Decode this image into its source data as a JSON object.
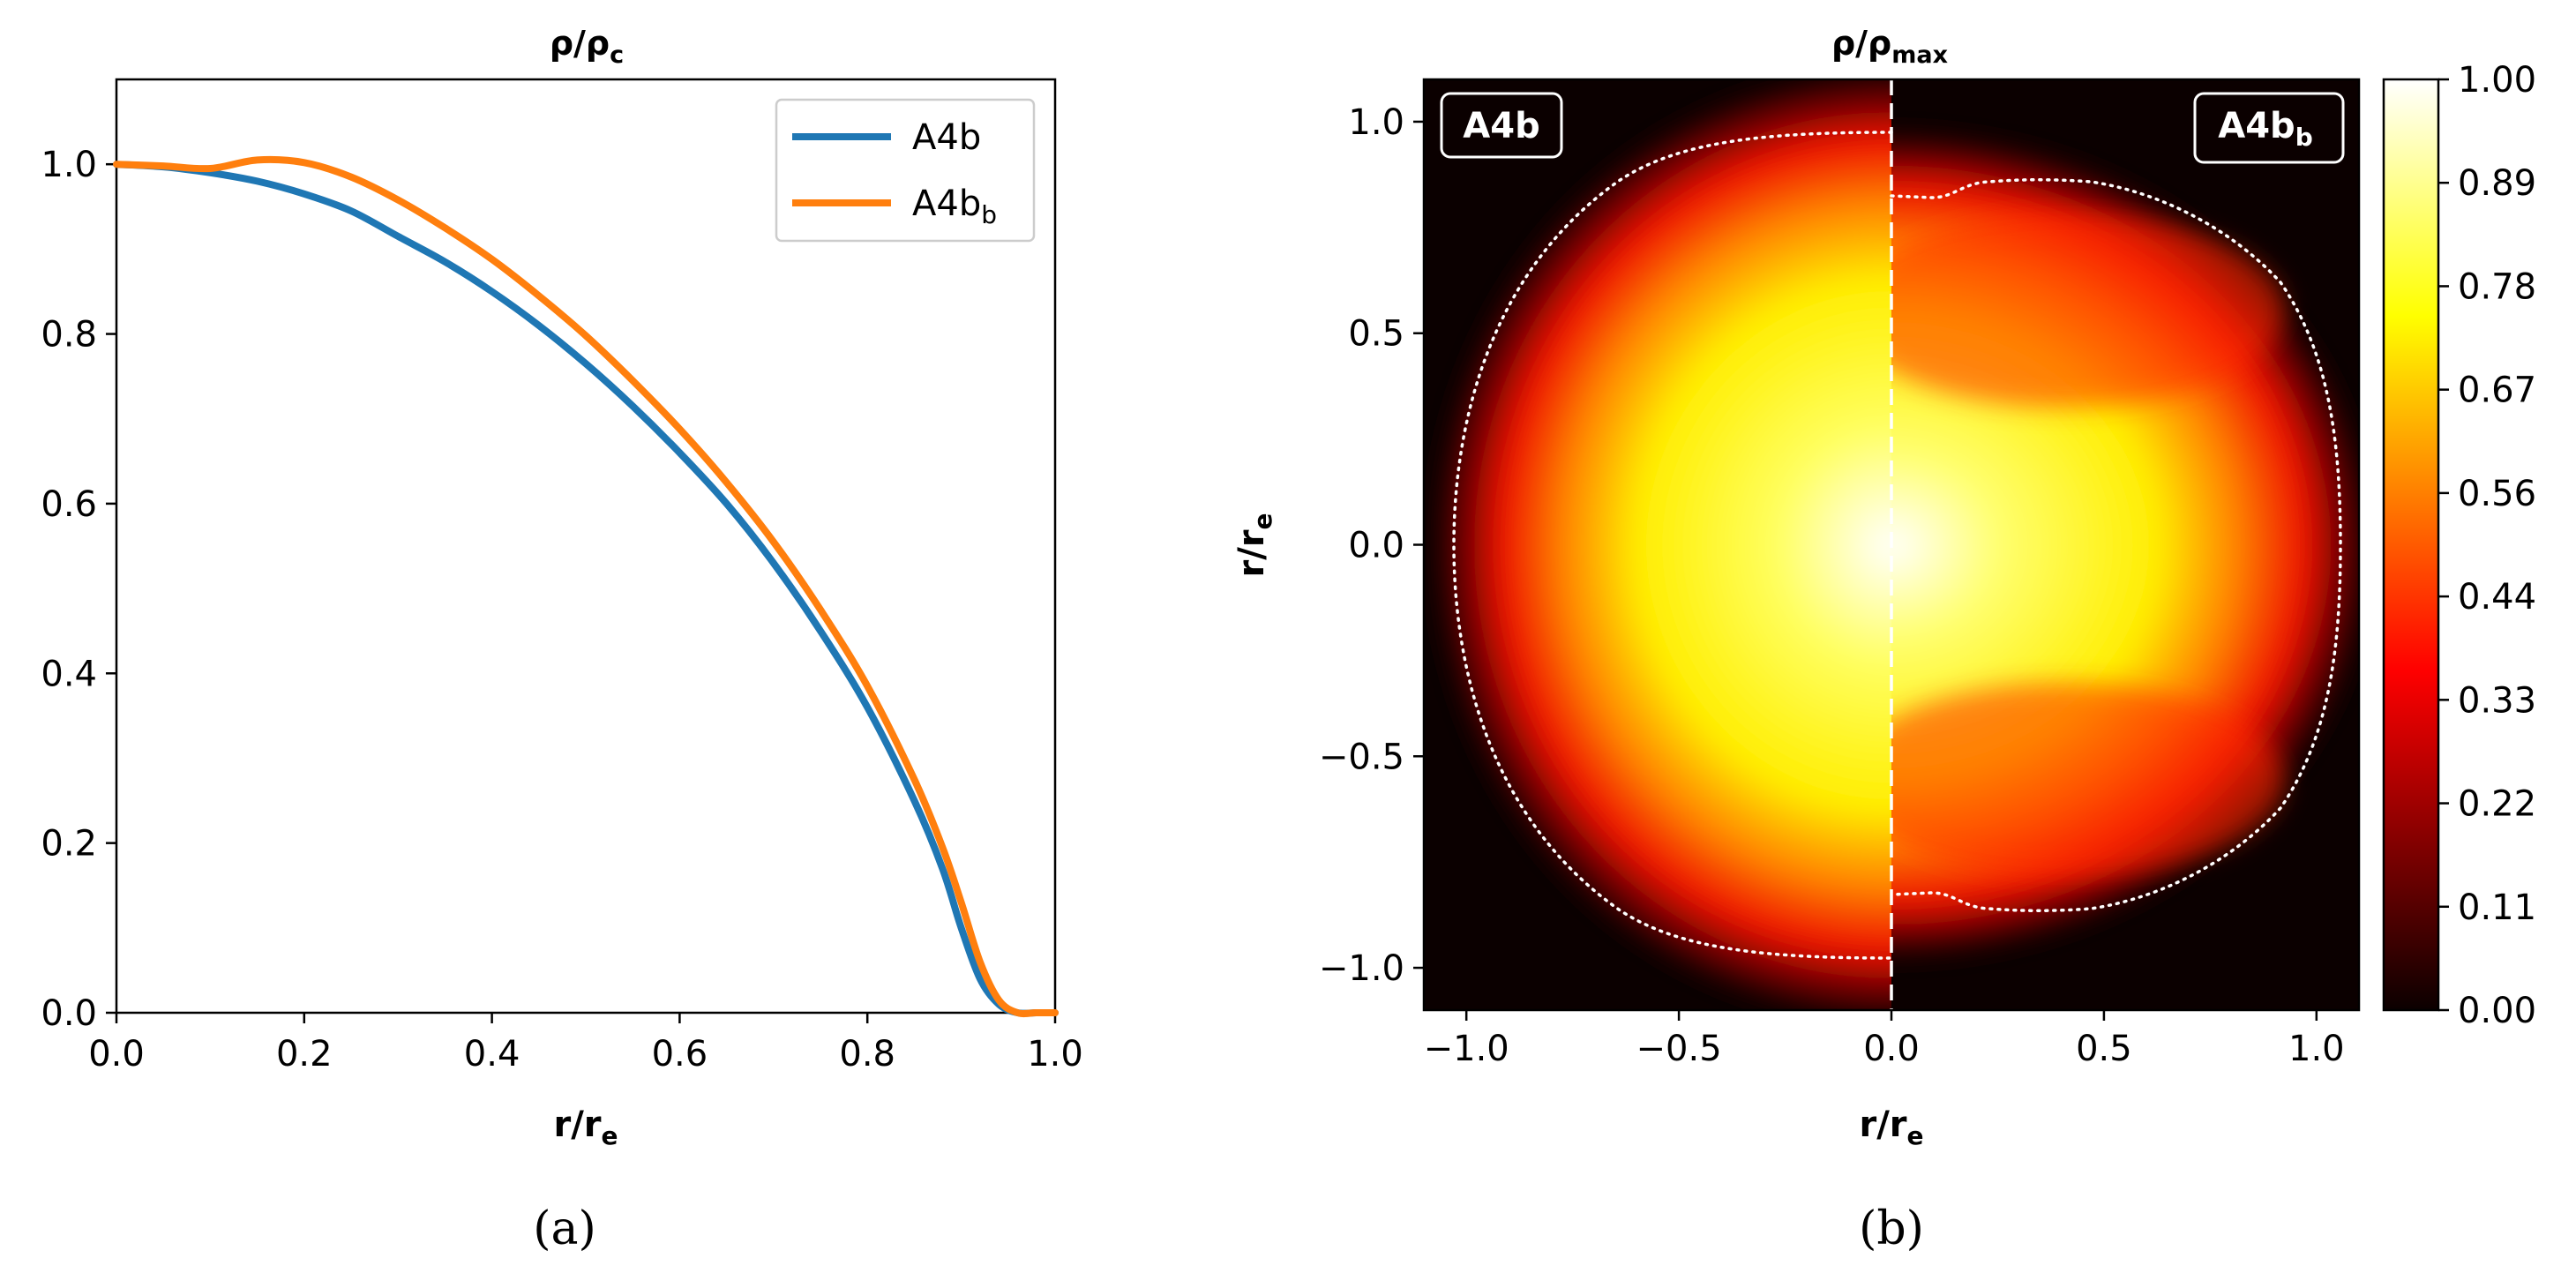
{
  "chart_data": [
    {
      "type": "line",
      "title": "ρ/ρ",
      "title_sub": "c",
      "xlabel": "r/r",
      "xlabel_sub": "e",
      "ylabel": "",
      "xlim": [
        0,
        1.0
      ],
      "ylim": [
        0,
        1.1
      ],
      "xticks": [
        "0.0",
        "0.2",
        "0.4",
        "0.6",
        "0.8",
        "1.0"
      ],
      "yticks": [
        "0.0",
        "0.2",
        "0.4",
        "0.6",
        "0.8",
        "1.0"
      ],
      "legend_position": "top-right",
      "series": [
        {
          "name": "A4b",
          "name_sub": "",
          "color": "#1f77b4",
          "x": [
            0,
            0.05,
            0.1,
            0.15,
            0.2,
            0.25,
            0.3,
            0.35,
            0.4,
            0.45,
            0.5,
            0.55,
            0.6,
            0.65,
            0.7,
            0.75,
            0.8,
            0.85,
            0.88,
            0.9,
            0.92,
            0.94,
            0.96,
            0.98,
            1.0
          ],
          "values": [
            1.0,
            0.997,
            0.99,
            0.98,
            0.965,
            0.945,
            0.915,
            0.885,
            0.85,
            0.81,
            0.765,
            0.715,
            0.66,
            0.6,
            0.53,
            0.45,
            0.36,
            0.25,
            0.17,
            0.1,
            0.04,
            0.01,
            0.0,
            0.0,
            0.0
          ]
        },
        {
          "name": "A4b",
          "name_sub": "b",
          "color": "#ff7f0e",
          "x": [
            0,
            0.05,
            0.1,
            0.15,
            0.2,
            0.25,
            0.3,
            0.35,
            0.4,
            0.45,
            0.5,
            0.55,
            0.6,
            0.65,
            0.7,
            0.75,
            0.8,
            0.85,
            0.88,
            0.9,
            0.92,
            0.94,
            0.96,
            0.98,
            1.0
          ],
          "values": [
            1.0,
            0.998,
            0.995,
            1.005,
            1.002,
            0.985,
            0.958,
            0.925,
            0.888,
            0.845,
            0.798,
            0.745,
            0.688,
            0.625,
            0.555,
            0.475,
            0.385,
            0.275,
            0.195,
            0.13,
            0.06,
            0.015,
            0.0,
            0.0,
            0.0
          ]
        }
      ]
    },
    {
      "type": "heatmap",
      "title": "ρ/ρ",
      "title_sub": "max",
      "xlabel": "r/r",
      "xlabel_sub": "e",
      "ylabel": "r/r",
      "ylabel_sub": "e",
      "xlim": [
        -1.1,
        1.1
      ],
      "ylim": [
        -1.1,
        1.1
      ],
      "xticks": [
        -1.0,
        -0.5,
        0.0,
        0.5,
        1.0
      ],
      "xtick_labels": [
        "−1.0",
        "−0.5",
        "0.0",
        "0.5",
        "1.0"
      ],
      "yticks": [
        -1.0,
        -0.5,
        0.0,
        0.5,
        1.0
      ],
      "ytick_labels": [
        "−1.0",
        "−0.5",
        "0.0",
        "0.5",
        "1.0"
      ],
      "colormap": "hot",
      "colorbar_ticks": [
        "0.00",
        "0.11",
        "0.22",
        "0.33",
        "0.44",
        "0.56",
        "0.67",
        "0.78",
        "0.89",
        "1.00"
      ],
      "left_label": {
        "text": "A4b",
        "sub": ""
      },
      "right_label": {
        "text": "A4b",
        "sub": "b"
      },
      "left_half": {
        "radius_x": 0.93,
        "radius_y": 0.88,
        "surface_contour_r": 1.02
      },
      "right_half": {
        "radius_x": 0.98,
        "radius_y": 0.78,
        "surface_contour_r": 1.03
      }
    }
  ],
  "captions": {
    "a": "(a)",
    "b": "(b)"
  }
}
